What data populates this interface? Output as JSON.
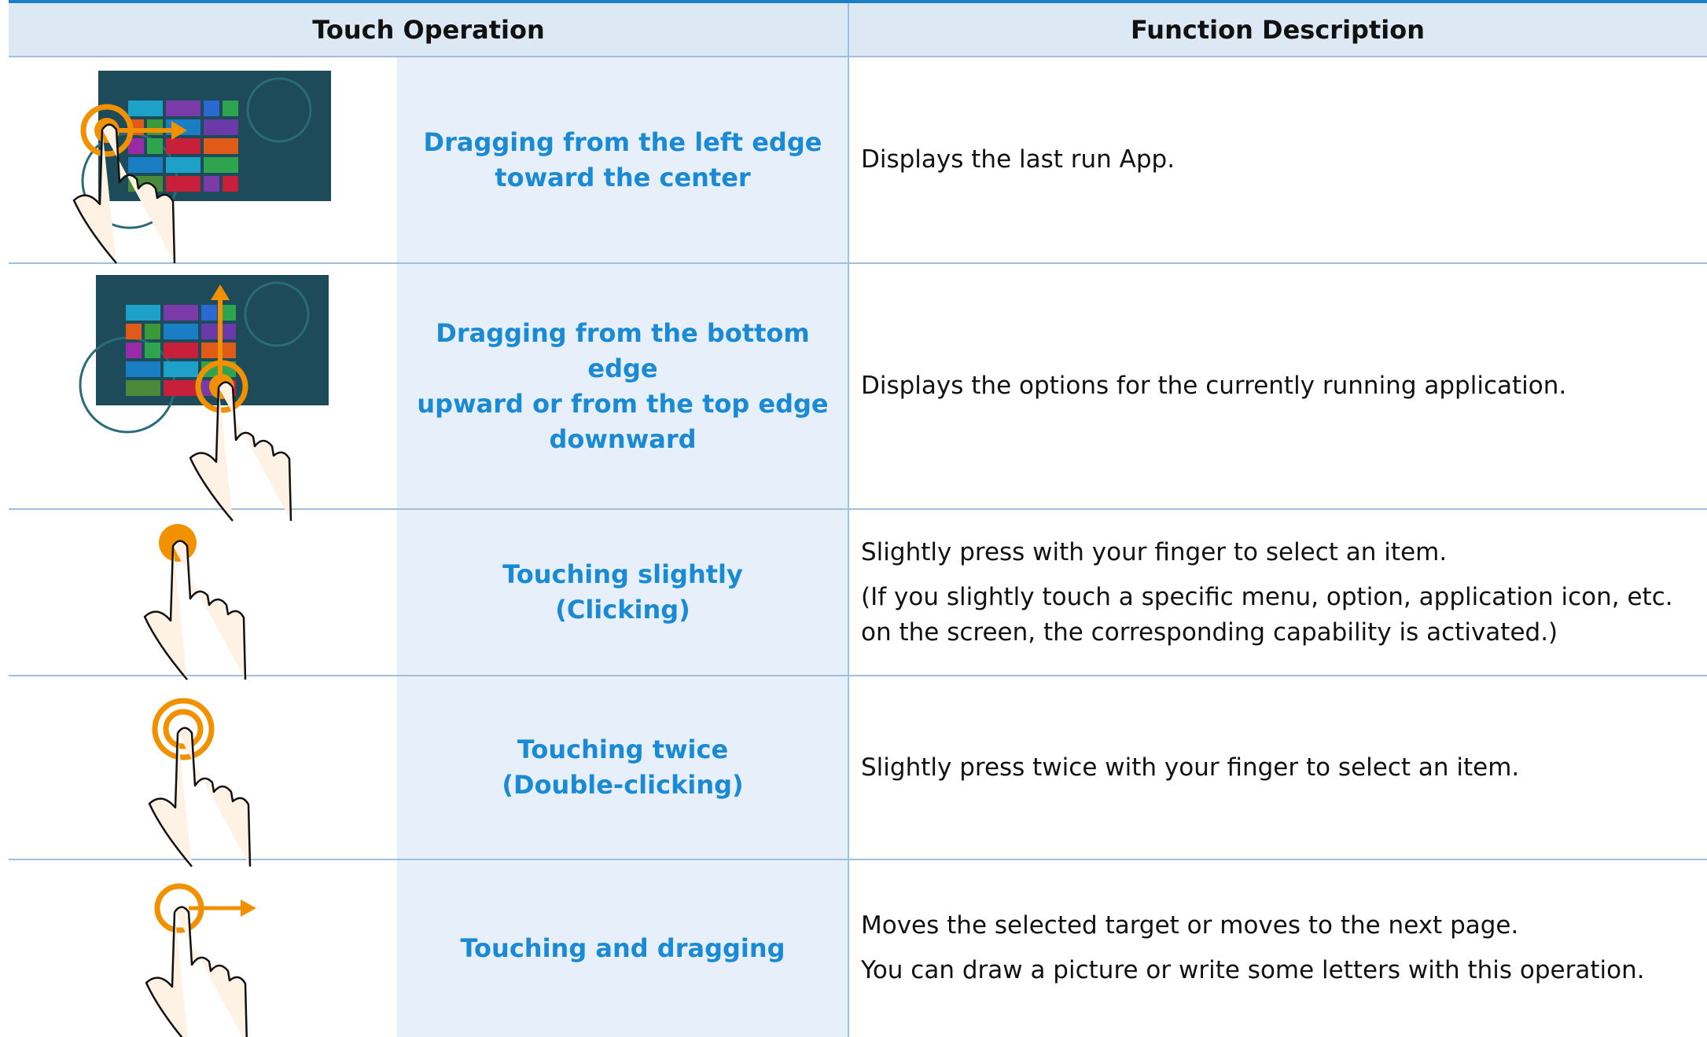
{
  "table": {
    "header": [
      "Touch Operation",
      "Function Description"
    ],
    "rows": [
      {
        "operation": [
          "Dragging from the left edge",
          "toward the center"
        ],
        "description": [
          "Displays the last run App."
        ]
      },
      {
        "operation": [
          "Dragging from the bottom edge",
          "upward or from the top edge",
          "downward"
        ],
        "description": [
          "Displays the options for the currently running application."
        ]
      },
      {
        "operation": [
          "Touching slightly",
          "(Clicking)"
        ],
        "description": [
          "Slightly press with your finger to select an item.",
          "(If you slightly touch a specific menu, option, application icon, etc. on the screen, the corresponding capability is activated.)"
        ]
      },
      {
        "operation": [
          "Touching twice",
          "(Double-clicking)"
        ],
        "description": [
          "Slightly press twice with your finger to select an item."
        ]
      },
      {
        "operation": [
          "Touching and dragging"
        ],
        "description": [
          "Moves the selected target or moves to the next page.",
          "You can draw a picture or write some letters with this operation."
        ]
      }
    ]
  }
}
